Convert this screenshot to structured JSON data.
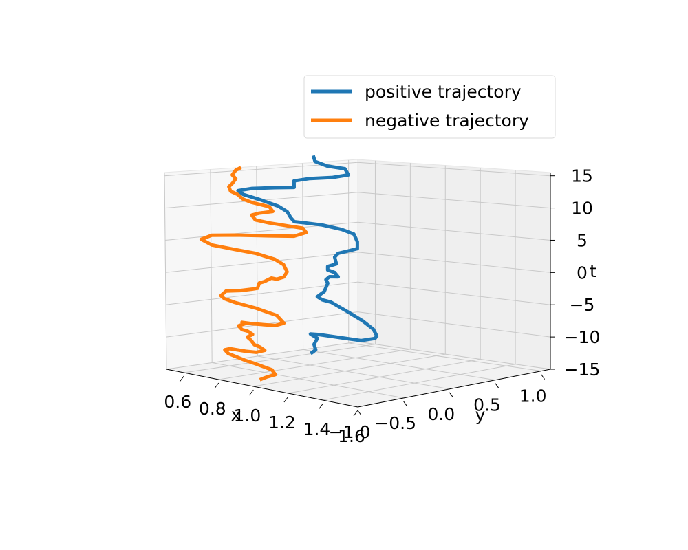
{
  "chart_data": {
    "type": "line",
    "projection": "3d",
    "xlabel": "x",
    "ylabel": "y",
    "zlabel": "t",
    "xlim": [
      0.5,
      1.6
    ],
    "ylim": [
      -1.0,
      1.1
    ],
    "zlim": [
      -15,
      15.5
    ],
    "xticks": [
      0.6,
      0.8,
      1.0,
      1.2,
      1.4,
      1.6
    ],
    "xtick_labels": [
      "0.6",
      "0.8",
      "1.0",
      "1.2",
      "1.4",
      "1.6"
    ],
    "yticks": [
      -1.0,
      -0.5,
      0.0,
      0.5,
      1.0
    ],
    "ytick_labels": [
      "−1.0",
      "−0.5",
      "0.0",
      "0.5",
      "1.0"
    ],
    "zticks": [
      -15,
      -10,
      -5,
      0,
      5,
      10,
      15
    ],
    "ztick_labels": [
      "−15",
      "−10",
      "−5",
      "0",
      "5",
      "10",
      "15"
    ],
    "grid": true,
    "legend_position": "top-right",
    "series": [
      {
        "name": "positive trajectory",
        "color": "#1f77b4",
        "points": [
          [
            0.83,
            -0.05,
            -13.0
          ],
          [
            0.86,
            -0.05,
            -12.3
          ],
          [
            0.85,
            -0.05,
            -11.5
          ],
          [
            0.87,
            -0.05,
            -10.5
          ],
          [
            0.83,
            -0.05,
            -10.0
          ],
          [
            0.88,
            -0.05,
            -9.9
          ],
          [
            1.0,
            -0.05,
            -9.9
          ],
          [
            1.12,
            -0.05,
            -9.9
          ],
          [
            1.2,
            -0.05,
            -9.3
          ],
          [
            1.21,
            -0.05,
            -8.9
          ],
          [
            1.19,
            -0.05,
            -8.0
          ],
          [
            1.13,
            -0.05,
            -7.0
          ],
          [
            1.05,
            -0.05,
            -6.0
          ],
          [
            0.95,
            -0.05,
            -4.8
          ],
          [
            0.9,
            -0.05,
            -4.6
          ],
          [
            0.87,
            -0.05,
            -4.2
          ],
          [
            0.91,
            -0.05,
            -3.3
          ],
          [
            0.93,
            -0.05,
            -2.0
          ],
          [
            0.92,
            -0.05,
            -1.5
          ],
          [
            0.94,
            -0.05,
            -1.0
          ],
          [
            0.99,
            -0.05,
            -0.9
          ],
          [
            0.97,
            -0.05,
            -0.3
          ],
          [
            0.93,
            -0.05,
            0.0
          ],
          [
            0.93,
            -0.05,
            0.5
          ],
          [
            0.98,
            -0.05,
            1.0
          ],
          [
            0.97,
            -0.05,
            2.0
          ],
          [
            0.99,
            -0.05,
            2.6
          ],
          [
            1.04,
            -0.05,
            3.0
          ],
          [
            1.1,
            -0.05,
            3.5
          ],
          [
            1.1,
            -0.05,
            4.5
          ],
          [
            1.08,
            -0.05,
            5.6
          ],
          [
            1.01,
            -0.05,
            6.2
          ],
          [
            0.9,
            -0.05,
            6.7
          ],
          [
            0.8,
            -0.05,
            6.9
          ],
          [
            0.74,
            -0.05,
            7.0
          ],
          [
            0.72,
            -0.05,
            7.6
          ],
          [
            0.7,
            -0.05,
            8.5
          ],
          [
            0.65,
            -0.05,
            9.3
          ],
          [
            0.55,
            -0.05,
            10.2
          ],
          [
            0.45,
            -0.05,
            11.0
          ],
          [
            0.42,
            -0.05,
            11.6
          ],
          [
            0.5,
            -0.05,
            12.0
          ],
          [
            0.63,
            -0.05,
            12.2
          ],
          [
            0.74,
            -0.05,
            12.3
          ],
          [
            0.74,
            -0.05,
            13.3
          ],
          [
            0.83,
            -0.05,
            13.7
          ],
          [
            0.96,
            -0.05,
            13.9
          ],
          [
            1.05,
            -0.05,
            14.3
          ],
          [
            1.03,
            -0.05,
            15.2
          ],
          [
            0.93,
            -0.05,
            15.6
          ],
          [
            0.86,
            -0.05,
            16.3
          ],
          [
            0.85,
            -0.05,
            17.2
          ]
        ]
      },
      {
        "name": "negative trajectory",
        "color": "#ff7f0e",
        "points": [
          [
            0.8,
            -0.55,
            -16.0
          ],
          [
            0.84,
            -0.55,
            -15.4
          ],
          [
            0.89,
            -0.55,
            -14.8
          ],
          [
            0.87,
            -0.55,
            -14.2
          ],
          [
            0.77,
            -0.55,
            -13.7
          ],
          [
            0.72,
            -0.55,
            -13.5
          ],
          [
            0.62,
            -0.55,
            -12.9
          ],
          [
            0.6,
            -0.55,
            -12.4
          ],
          [
            0.63,
            -0.55,
            -12.1
          ],
          [
            0.72,
            -0.55,
            -12.1
          ],
          [
            0.78,
            -0.55,
            -12.0
          ],
          [
            0.83,
            -0.55,
            -11.5
          ],
          [
            0.8,
            -0.55,
            -11.1
          ],
          [
            0.77,
            -0.55,
            -10.9
          ],
          [
            0.75,
            -0.55,
            -10.3
          ],
          [
            0.73,
            -0.55,
            -9.9
          ],
          [
            0.76,
            -0.55,
            -9.4
          ],
          [
            0.73,
            -0.55,
            -9.0
          ],
          [
            0.7,
            -0.55,
            -8.9
          ],
          [
            0.68,
            -0.55,
            -8.4
          ],
          [
            0.72,
            -0.55,
            -7.9
          ],
          [
            0.7,
            -0.55,
            -7.8
          ],
          [
            0.76,
            -0.55,
            -7.8
          ],
          [
            0.89,
            -0.55,
            -7.6
          ],
          [
            0.94,
            -0.55,
            -7.1
          ],
          [
            0.9,
            -0.55,
            -6.1
          ],
          [
            0.78,
            -0.55,
            -5.4
          ],
          [
            0.66,
            -0.55,
            -4.9
          ],
          [
            0.6,
            -0.55,
            -4.5
          ],
          [
            0.58,
            -0.55,
            -4.1
          ],
          [
            0.61,
            -0.55,
            -3.3
          ],
          [
            0.69,
            -0.55,
            -3.0
          ],
          [
            0.76,
            -0.55,
            -2.6
          ],
          [
            0.79,
            -0.55,
            -2.4
          ],
          [
            0.8,
            -0.55,
            -1.6
          ],
          [
            0.83,
            -0.55,
            -1.3
          ],
          [
            0.85,
            -0.55,
            -1.0
          ],
          [
            0.87,
            -0.55,
            -0.7
          ],
          [
            0.9,
            -0.55,
            -0.8
          ],
          [
            0.94,
            -0.55,
            -0.4
          ],
          [
            0.96,
            -0.55,
            0.4
          ],
          [
            0.94,
            -0.55,
            1.4
          ],
          [
            0.89,
            -0.55,
            2.1
          ],
          [
            0.78,
            -0.55,
            2.8
          ],
          [
            0.66,
            -0.55,
            3.2
          ],
          [
            0.53,
            -0.55,
            3.7
          ],
          [
            0.47,
            -0.55,
            4.5
          ],
          [
            0.53,
            -0.55,
            5.2
          ],
          [
            0.67,
            -0.55,
            5.4
          ],
          [
            0.86,
            -0.55,
            5.5
          ],
          [
            1.0,
            -0.55,
            5.6
          ],
          [
            1.07,
            -0.55,
            6.2
          ],
          [
            1.05,
            -0.55,
            6.8
          ],
          [
            0.98,
            -0.55,
            7.0
          ],
          [
            0.86,
            -0.55,
            7.4
          ],
          [
            0.78,
            -0.55,
            7.8
          ],
          [
            0.76,
            -0.55,
            8.5
          ],
          [
            0.8,
            -0.55,
            8.8
          ],
          [
            0.88,
            -0.55,
            9.1
          ],
          [
            0.86,
            -0.55,
            9.8
          ],
          [
            0.76,
            -0.55,
            10.4
          ],
          [
            0.71,
            -0.55,
            10.9
          ],
          [
            0.68,
            -0.55,
            11.6
          ],
          [
            0.64,
            -0.55,
            12.1
          ],
          [
            0.63,
            -0.55,
            12.8
          ],
          [
            0.65,
            -0.55,
            13.3
          ],
          [
            0.67,
            -0.55,
            14.0
          ],
          [
            0.65,
            -0.55,
            14.6
          ],
          [
            0.67,
            -0.55,
            15.3
          ],
          [
            0.7,
            -0.55,
            15.7
          ]
        ]
      }
    ]
  }
}
